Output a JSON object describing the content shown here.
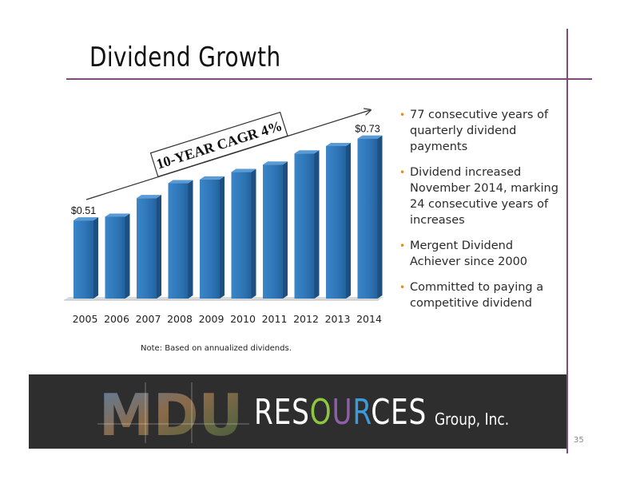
{
  "slide": {
    "title": "Dividend Growth",
    "page_number": "35",
    "note": "Note: Based on annualized dividends."
  },
  "bullets": [
    "77 consecutive years of quarterly dividend payments",
    "Dividend increased November 2014, marking 24 consecutive years of increases",
    "Mergent Dividend Achiever since 2000",
    "Committed to paying a competitive dividend"
  ],
  "footer": {
    "logo_text": "MDU",
    "brand_r": "RES",
    "brand_o": "O",
    "brand_u": "U",
    "brand_r2": "R",
    "brand_rest": "CES",
    "group": "Group, Inc."
  },
  "chart_data": {
    "type": "bar",
    "categories": [
      "2005",
      "2006",
      "2007",
      "2008",
      "2009",
      "2010",
      "2011",
      "2012",
      "2013",
      "2014"
    ],
    "values": [
      0.51,
      0.52,
      0.57,
      0.61,
      0.62,
      0.64,
      0.66,
      0.69,
      0.71,
      0.73
    ],
    "data_labels": [
      "$0.51",
      "",
      "",
      "",
      "",
      "",
      "",
      "",
      "",
      "$0.73"
    ],
    "annotation": "10-YEAR CAGR 4%",
    "bar_color": "#2e75b6",
    "grid": false
  }
}
